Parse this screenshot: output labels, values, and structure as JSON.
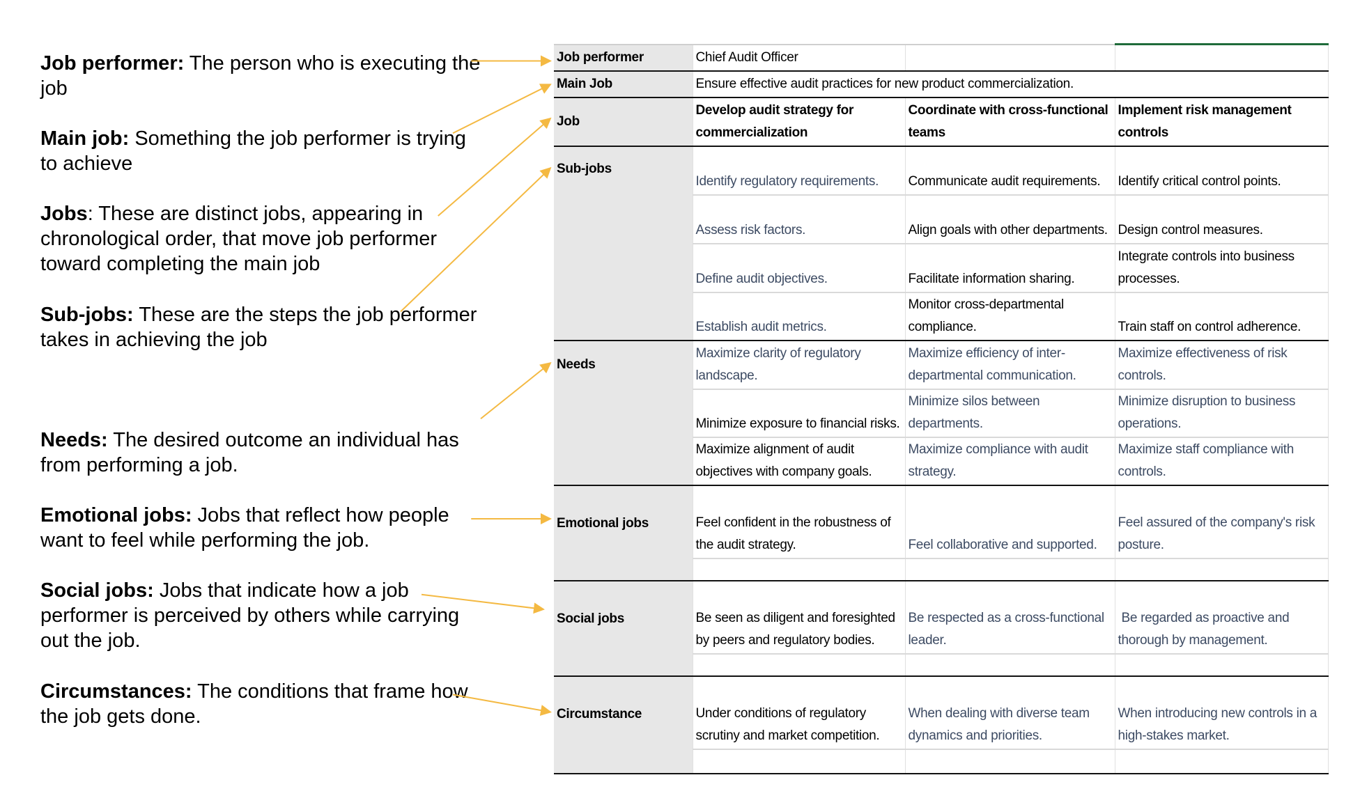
{
  "annotations": [
    {
      "term": "Job performer:",
      "desc": " The person who is executing the job"
    },
    {
      "term": "Main job:",
      "desc": " Something the job performer is trying to achieve"
    },
    {
      "term": "Jobs",
      "desc": ": These are distinct jobs, appearing in chronological order, that move job performer toward completing the main job"
    },
    {
      "term": "Sub-jobs:",
      "desc": " These are the steps the job performer takes in achieving the job"
    },
    {
      "term": "Needs:",
      "desc": " The desired outcome an individual has from performing a job."
    },
    {
      "term": "Emotional jobs:",
      "desc": " Jobs that reflect how people want to feel while performing the job."
    },
    {
      "term": "Social jobs:",
      "desc": " Jobs that indicate how a job performer is perceived by others while carrying out the job."
    },
    {
      "term": "Circumstances:",
      "desc": " The conditions that frame how the job gets done."
    }
  ],
  "arrow_color": "#f4b942",
  "table": {
    "labels": {
      "job_performer": "Job performer",
      "main_job": "Main Job",
      "job": "Job",
      "sub_jobs": "Sub-jobs",
      "needs": "Needs",
      "emotional": "Emotional jobs",
      "social": "Social jobs",
      "circumstance": "Circumstance"
    },
    "job_performer": "Chief Audit Officer",
    "main_job": "Ensure effective audit practices for new product commercialization.",
    "jobs": [
      "Develop audit strategy for commercialization",
      "Coordinate with cross-functional teams",
      "Implement risk management controls"
    ],
    "sub_jobs": [
      [
        "Identify regulatory requirements.",
        "Communicate audit requirements.",
        "Identify critical control points."
      ],
      [
        "Assess risk factors.",
        "Align goals with other departments.",
        "Design control measures."
      ],
      [
        "Define audit objectives.",
        "Facilitate information sharing.",
        "Integrate controls into business processes."
      ],
      [
        "Establish audit metrics.",
        "Monitor cross-departmental compliance.",
        "Train staff on control adherence."
      ]
    ],
    "needs": [
      [
        "Maximize clarity of regulatory landscape.",
        "Maximize efficiency of inter-departmental communication.",
        "Maximize effectiveness of risk controls."
      ],
      [
        "Minimize exposure to financial risks.",
        "Minimize silos between departments.",
        "Minimize disruption to business operations."
      ],
      [
        "Maximize alignment of audit objectives with company goals.",
        "Maximize compliance with audit strategy.",
        "Maximize staff compliance with controls."
      ]
    ],
    "emotional": [
      "Feel confident in the robustness of the audit strategy.",
      "Feel collaborative and supported.",
      "Feel assured of the company's risk posture."
    ],
    "social": [
      "Be seen as diligent and foresighted by peers and regulatory bodies.",
      "Be respected as a cross-functional leader.",
      " Be regarded as proactive and thorough by management."
    ],
    "circumstance": [
      "Under conditions of regulatory scrutiny and market competition.",
      "When dealing with diverse team dynamics and priorities.",
      "When introducing new controls in a high-stakes market."
    ]
  }
}
